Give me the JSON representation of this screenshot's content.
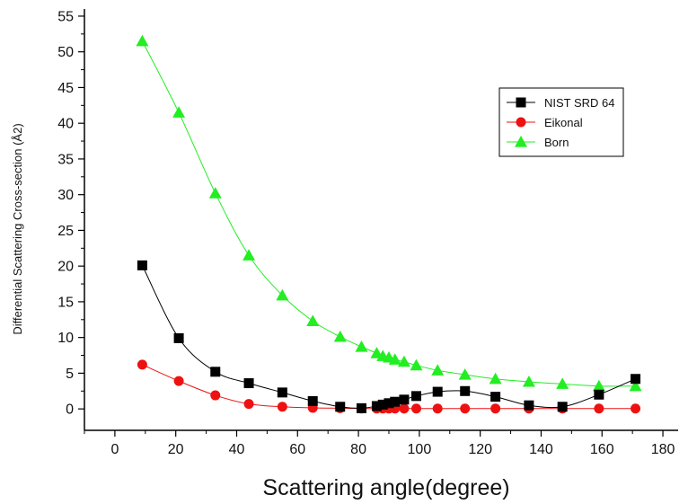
{
  "chart_data": {
    "type": "line",
    "title": "",
    "xlabel": "Scattering angle(degree)",
    "ylabel": "Differential Scattering Cross-section (Å2)",
    "xlim": [
      -10,
      185
    ],
    "ylim": [
      -3,
      56
    ],
    "xticks": [
      0,
      20,
      40,
      60,
      80,
      100,
      120,
      140,
      160,
      180
    ],
    "yticks": [
      0,
      5,
      10,
      15,
      20,
      25,
      30,
      35,
      40,
      45,
      50,
      55
    ],
    "grid": false,
    "legend_position": "top-right",
    "series": [
      {
        "name": "NIST SRD 64",
        "color": "#000000",
        "marker": "square",
        "x": [
          9,
          21,
          33,
          44,
          55,
          65,
          74,
          81,
          86,
          88,
          90,
          92,
          95,
          99,
          106,
          115,
          125,
          136,
          147,
          159,
          171
        ],
        "y": [
          20.1,
          9.9,
          5.2,
          3.6,
          2.3,
          1.1,
          0.3,
          0.1,
          0.4,
          0.6,
          0.8,
          1.0,
          1.3,
          1.8,
          2.4,
          2.5,
          1.7,
          0.5,
          0.3,
          2.0,
          4.2
        ]
      },
      {
        "name": "Eikonal",
        "color": "#ee1111",
        "marker": "circle",
        "x": [
          9,
          21,
          33,
          44,
          55,
          65,
          74,
          81,
          86,
          88,
          90,
          92,
          95,
          99,
          106,
          115,
          125,
          136,
          147,
          159,
          171
        ],
        "y": [
          6.2,
          3.9,
          1.9,
          0.7,
          0.3,
          0.15,
          0.1,
          0.05,
          0.05,
          0.05,
          0.05,
          0.05,
          0.05,
          0.05,
          0.05,
          0.05,
          0.05,
          0.05,
          0.05,
          0.05,
          0.05
        ]
      },
      {
        "name": "Born",
        "color": "#22ee22",
        "marker": "triangle",
        "x": [
          9,
          21,
          33,
          44,
          55,
          65,
          74,
          81,
          86,
          88,
          90,
          92,
          95,
          99,
          106,
          115,
          125,
          136,
          147,
          159,
          171
        ],
        "y": [
          51.5,
          41.5,
          30.2,
          21.5,
          15.9,
          12.3,
          10.1,
          8.7,
          7.8,
          7.4,
          7.2,
          6.9,
          6.6,
          6.1,
          5.4,
          4.8,
          4.2,
          3.8,
          3.5,
          3.2,
          3.2
        ]
      }
    ]
  }
}
